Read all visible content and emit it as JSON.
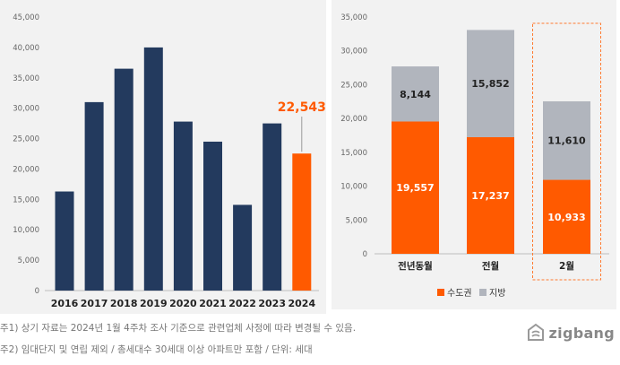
{
  "chart_data": [
    {
      "type": "bar",
      "categories": [
        "2016",
        "2017",
        "2018",
        "2019",
        "2020",
        "2021",
        "2022",
        "2023",
        "2024"
      ],
      "values": [
        16300,
        31000,
        36500,
        40000,
        27800,
        24500,
        14100,
        27500,
        22543
      ],
      "highlight_index": 8,
      "highlight_label": "22,543",
      "yticks": [
        "0",
        "5,000",
        "10,000",
        "15,000",
        "20,000",
        "25,000",
        "30,000",
        "35,000",
        "40,000",
        "45,000"
      ],
      "ylim": [
        0,
        45000
      ],
      "colors": {
        "bar": "#233a5e",
        "highlight": "#ff5a00"
      },
      "grid": false
    },
    {
      "type": "bar",
      "stacked": true,
      "categories": [
        "전년동월",
        "전월",
        "2월"
      ],
      "series": [
        {
          "name": "수도권",
          "values": [
            19557,
            17237,
            10933
          ],
          "labels": [
            "19,557",
            "17,237",
            "10,933"
          ],
          "color": "#ff5a00"
        },
        {
          "name": "지방",
          "values": [
            8144,
            15852,
            11610
          ],
          "labels": [
            "8,144",
            "15,852",
            "11,610"
          ],
          "color": "#b1b5bd"
        }
      ],
      "highlight_category": "2월",
      "yticks": [
        "0",
        "5,000",
        "10,000",
        "15,000",
        "20,000",
        "25,000",
        "30,000",
        "35,000"
      ],
      "ylim": [
        0,
        35000
      ],
      "legend": "bottom",
      "grid": false
    }
  ],
  "notes": {
    "note1": "주1) 상기 자료는 2024년 1월 4주차 조사 기준으로 관련업체 사정에 따라 변경될 수 있음.",
    "note2": "주2) 임대단지 및 연립 제외 / 총세대수 30세대 이상 아파트만 포함 / 단위: 세대"
  },
  "logo": {
    "text": "zigbang",
    "icon": "zigbang-logo-icon",
    "color": "#888888"
  }
}
